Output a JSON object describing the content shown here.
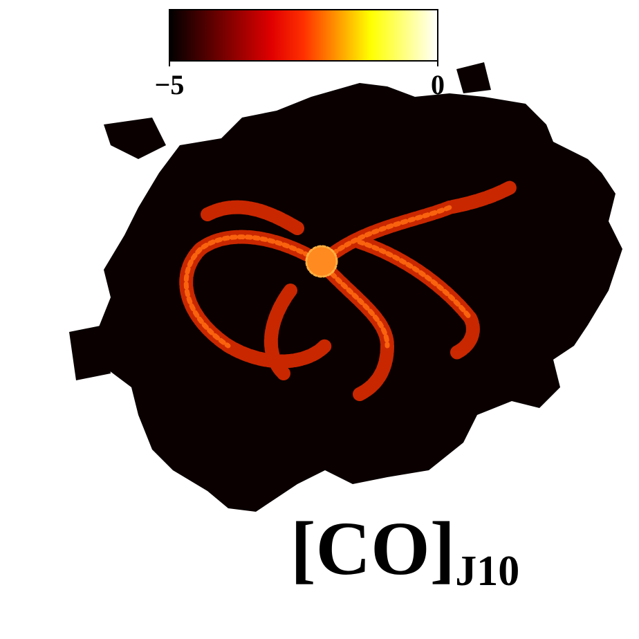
{
  "chart_data": {
    "type": "image",
    "label": "[CO]",
    "label_subscript": "J10",
    "colormap": "hot",
    "clim": [
      -5,
      0
    ],
    "cticks": [
      {
        "value": -5,
        "label": "−5"
      },
      0
    ]
  }
}
